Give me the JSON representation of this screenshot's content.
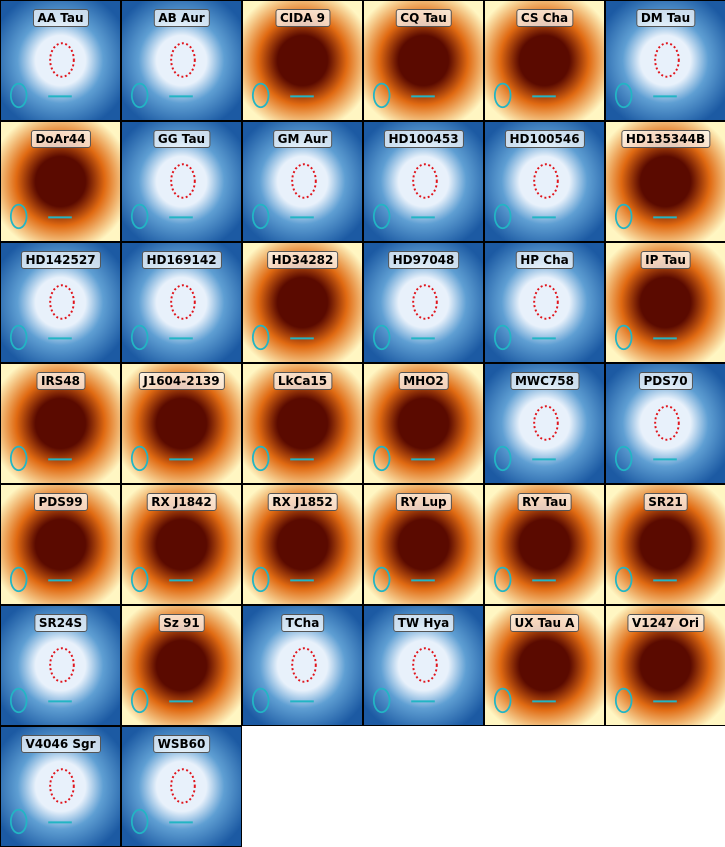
{
  "gallery": {
    "panels": [
      {
        "name": "AA Tau",
        "colormap": "blue",
        "inner_ring": true
      },
      {
        "name": "AB Aur",
        "colormap": "blue",
        "inner_ring": true
      },
      {
        "name": "CIDA 9",
        "colormap": "orange",
        "inner_ring": false
      },
      {
        "name": "CQ Tau",
        "colormap": "orange",
        "inner_ring": false
      },
      {
        "name": "CS Cha",
        "colormap": "orange",
        "inner_ring": false
      },
      {
        "name": "DM Tau",
        "colormap": "blue",
        "inner_ring": true
      },
      {
        "name": "DoAr44",
        "colormap": "orange",
        "inner_ring": false
      },
      {
        "name": "GG Tau",
        "colormap": "blue",
        "inner_ring": true
      },
      {
        "name": "GM Aur",
        "colormap": "blue",
        "inner_ring": true
      },
      {
        "name": "HD100453",
        "colormap": "blue",
        "inner_ring": true
      },
      {
        "name": "HD100546",
        "colormap": "blue",
        "inner_ring": true
      },
      {
        "name": "HD135344B",
        "colormap": "orange",
        "inner_ring": false
      },
      {
        "name": "HD142527",
        "colormap": "blue",
        "inner_ring": true
      },
      {
        "name": "HD169142",
        "colormap": "blue",
        "inner_ring": true
      },
      {
        "name": "HD34282",
        "colormap": "orange",
        "inner_ring": false
      },
      {
        "name": "HD97048",
        "colormap": "blue",
        "inner_ring": true
      },
      {
        "name": "HP Cha",
        "colormap": "blue",
        "inner_ring": true
      },
      {
        "name": "IP Tau",
        "colormap": "orange",
        "inner_ring": false
      },
      {
        "name": "IRS48",
        "colormap": "orange",
        "inner_ring": false
      },
      {
        "name": "J1604-2139",
        "colormap": "orange",
        "inner_ring": false
      },
      {
        "name": "LkCa15",
        "colormap": "orange",
        "inner_ring": false
      },
      {
        "name": "MHO2",
        "colormap": "orange",
        "inner_ring": false
      },
      {
        "name": "MWC758",
        "colormap": "blue",
        "inner_ring": true
      },
      {
        "name": "PDS70",
        "colormap": "blue",
        "inner_ring": true
      },
      {
        "name": "PDS99",
        "colormap": "orange",
        "inner_ring": false
      },
      {
        "name": "RX J1842",
        "colormap": "orange",
        "inner_ring": false
      },
      {
        "name": "RX J1852",
        "colormap": "orange",
        "inner_ring": false
      },
      {
        "name": "RY Lup",
        "colormap": "orange",
        "inner_ring": false
      },
      {
        "name": "RY Tau",
        "colormap": "orange",
        "inner_ring": false
      },
      {
        "name": "SR21",
        "colormap": "orange",
        "inner_ring": false
      },
      {
        "name": "SR24S",
        "colormap": "blue",
        "inner_ring": true
      },
      {
        "name": "Sz 91",
        "colormap": "orange",
        "inner_ring": false
      },
      {
        "name": "TCha",
        "colormap": "blue",
        "inner_ring": true
      },
      {
        "name": "TW Hya",
        "colormap": "blue",
        "inner_ring": true
      },
      {
        "name": "UX Tau A",
        "colormap": "orange",
        "inner_ring": false
      },
      {
        "name": "V1247 Ori",
        "colormap": "orange",
        "inner_ring": false
      },
      {
        "name": "V4046 Sgr",
        "colormap": "blue",
        "inner_ring": true
      },
      {
        "name": "WSB60",
        "colormap": "blue",
        "inner_ring": true
      }
    ]
  },
  "colors": {
    "blue_dark": "#1c5aa3",
    "blue_mid": "#5f9fd3",
    "blue_light": "#e8f1fb",
    "orange_dark": "#5a0a00",
    "orange_mid": "#e06a12",
    "orange_light": "#fff6c2",
    "beam_cyan": "#22b5c4",
    "ring_red": "#e0141c"
  }
}
